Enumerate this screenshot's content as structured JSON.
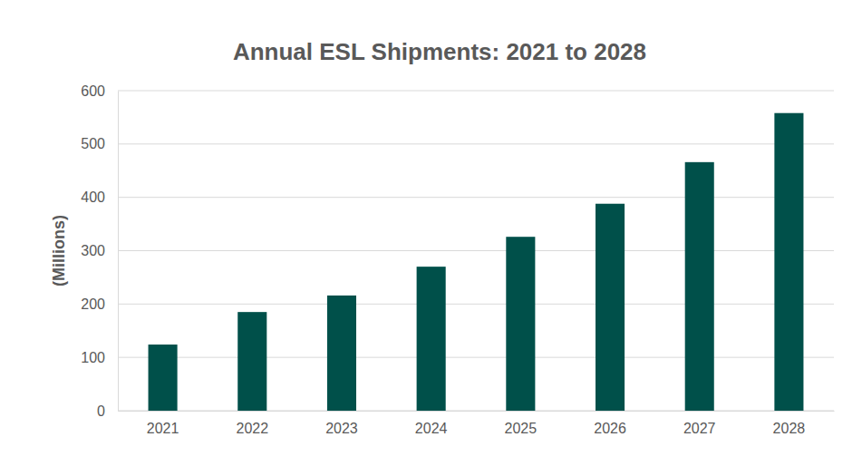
{
  "chart_data": {
    "type": "bar",
    "title": "Annual ESL Shipments: 2021 to 2028",
    "y_label": "(Millions)",
    "categories": [
      "2021",
      "2022",
      "2023",
      "2024",
      "2025",
      "2026",
      "2027",
      "2028"
    ],
    "values": [
      124,
      185,
      216,
      270,
      326,
      388,
      466,
      558
    ],
    "color": "#00504a",
    "ylim": [
      0,
      600
    ],
    "yticks": [
      0,
      100,
      200,
      300,
      400,
      500,
      600
    ],
    "grid": true
  }
}
